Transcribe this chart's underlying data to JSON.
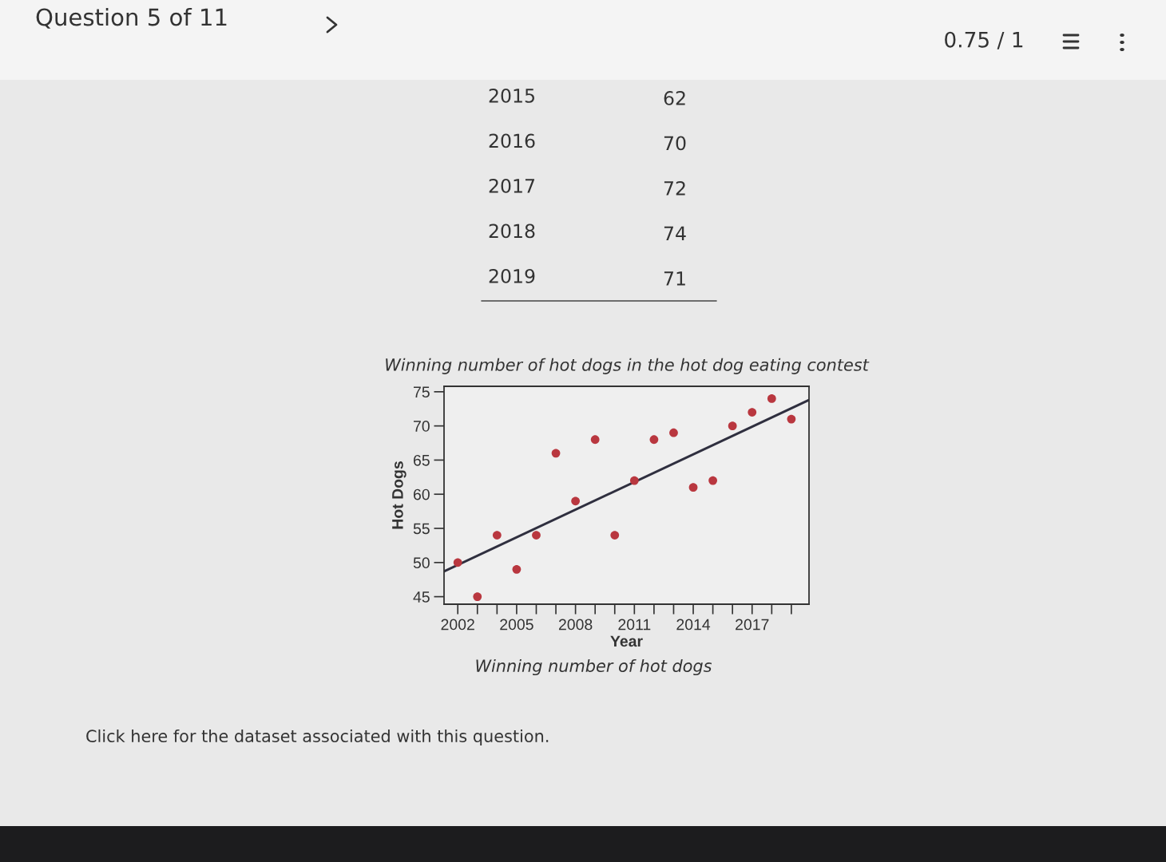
{
  "chart_data": {
    "type": "scatter",
    "title": "Winning number of hot dogs in the hot dog eating contest",
    "xlabel": "Year",
    "ylabel": "Hot Dogs",
    "annotations": [
      "Winning number of hot dogs",
      "Question 5 of 11",
      "0.75 / 1",
      "Click here for the dataset associated with this question.",
      "2015",
      "62",
      "2016",
      "70",
      "2017",
      "72",
      "2018",
      "74",
      "2019",
      "71"
    ],
    "x": [
      2002,
      2003,
      2004,
      2005,
      2006,
      2007,
      2008,
      2009,
      2010,
      2011,
      2012,
      2013,
      2014,
      2015,
      2016,
      2017,
      2018,
      2019
    ],
    "series": [
      {
        "type": "scatter",
        "color": "#b9373f",
        "marker": "circle",
        "values": [
          50,
          45,
          54,
          49,
          54,
          66,
          59,
          68,
          54,
          62,
          68,
          69,
          61,
          62,
          70,
          72,
          74,
          71
        ]
      },
      {
        "type": "line",
        "color": "#2f2f3f",
        "line_style": "solid",
        "marker": "none",
        "x": [
          2001.3,
          2019.9
        ],
        "values": [
          48.7,
          73.8
        ]
      }
    ],
    "xlim": [
      2001.3,
      2019.9
    ],
    "ylim": [
      43.9,
      75.8
    ],
    "xticks": [
      2002,
      {
        "value": 2003,
        "label": null
      },
      {
        "value": 2004,
        "label": null
      },
      2005,
      {
        "value": 2006,
        "label": null
      },
      {
        "value": 2007,
        "label": null
      },
      2008,
      {
        "value": 2009,
        "label": null
      },
      {
        "value": 2010,
        "label": null
      },
      2011,
      {
        "value": 2012,
        "label": null
      },
      {
        "value": 2013,
        "label": null
      },
      2014,
      {
        "value": 2015,
        "label": null
      },
      {
        "value": 2016,
        "label": null
      },
      2017,
      {
        "value": 2018,
        "label": null
      },
      {
        "value": 2019,
        "label": null
      }
    ],
    "yticks": [
      45,
      50,
      55,
      60,
      65,
      70,
      75
    ],
    "grid": false,
    "legend": false
  }
}
